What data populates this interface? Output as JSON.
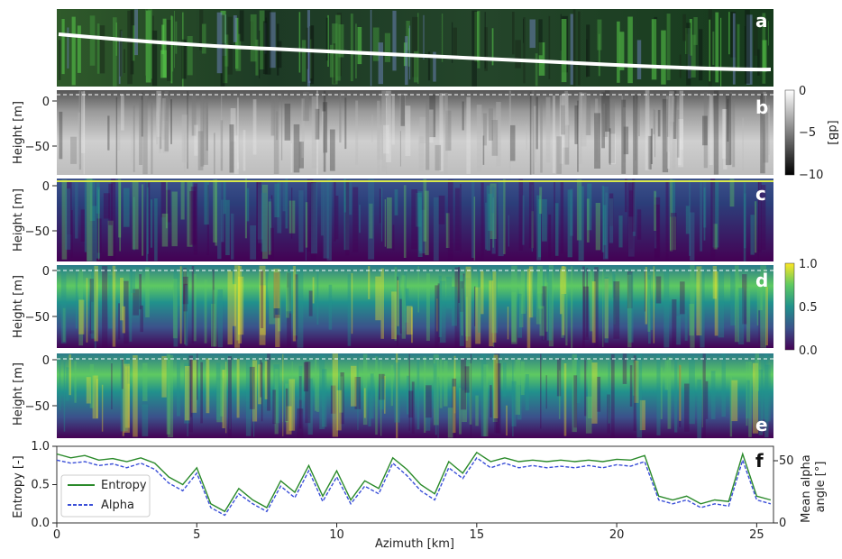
{
  "chart_data": [
    {
      "type": "image",
      "panel_label": "a",
      "description_visible": "optical image strip with white flight track"
    },
    {
      "type": "heatmap",
      "panel_label": "b",
      "ylabel": "Height [m]",
      "yticks": [
        "0",
        "−50"
      ],
      "colorbar": {
        "label": "[dB]",
        "ticks": [
          "0",
          "−5",
          "−10"
        ],
        "range": [
          -10,
          0
        ],
        "colormap": "gray"
      }
    },
    {
      "type": "heatmap",
      "panel_label": "c",
      "ylabel": "Height [m]",
      "yticks": [
        "0",
        "−50"
      ]
    },
    {
      "type": "heatmap",
      "panel_label": "d",
      "ylabel": "Height [m]",
      "yticks": [
        "0",
        "−50"
      ],
      "colorbar": {
        "ticks": [
          "1.0",
          "0.5",
          "0.0"
        ],
        "range": [
          0,
          1
        ],
        "colormap": "viridis"
      }
    },
    {
      "type": "heatmap",
      "panel_label": "e",
      "ylabel": "Height [m]",
      "yticks": [
        "0",
        "−50"
      ]
    },
    {
      "type": "line",
      "panel_label": "f",
      "xlabel": "Azimuth  [km]",
      "xticks": [
        "0",
        "5",
        "10",
        "15",
        "20",
        "25"
      ],
      "xlim": [
        0,
        25.6
      ],
      "ylabel": "Entropy [-]",
      "yticks": [
        "0.0",
        "0.5",
        "1.0"
      ],
      "ylim": [
        0,
        1
      ],
      "ylabel_right": "Mean alpha angle [°]",
      "yticks_right": [
        "0",
        "50"
      ],
      "legend": {
        "position": "lower-left",
        "entries": [
          "Entropy",
          "Alpha"
        ]
      },
      "x": [
        0,
        0.5,
        1,
        1.5,
        2,
        2.5,
        3,
        3.5,
        4,
        4.5,
        5,
        5.5,
        6,
        6.5,
        7,
        7.5,
        8,
        8.5,
        9,
        9.5,
        10,
        10.5,
        11,
        11.5,
        12,
        12.5,
        13,
        13.5,
        14,
        14.5,
        15,
        15.5,
        16,
        16.5,
        17,
        17.5,
        18,
        18.5,
        19,
        19.5,
        20,
        20.5,
        21,
        21.5,
        22,
        22.5,
        23,
        23.5,
        24,
        24.5,
        25,
        25.5
      ],
      "series": [
        {
          "name": "Entropy",
          "color": "#2a8a2a",
          "style": "solid",
          "values": [
            0.9,
            0.85,
            0.88,
            0.82,
            0.84,
            0.8,
            0.85,
            0.78,
            0.6,
            0.5,
            0.72,
            0.25,
            0.15,
            0.45,
            0.3,
            0.2,
            0.55,
            0.4,
            0.75,
            0.35,
            0.68,
            0.3,
            0.55,
            0.45,
            0.85,
            0.7,
            0.5,
            0.38,
            0.8,
            0.65,
            0.92,
            0.8,
            0.85,
            0.8,
            0.82,
            0.8,
            0.82,
            0.8,
            0.82,
            0.8,
            0.83,
            0.82,
            0.88,
            0.35,
            0.3,
            0.35,
            0.25,
            0.3,
            0.28,
            0.9,
            0.35,
            0.3
          ]
        },
        {
          "name": "Alpha",
          "color": "#3a4fd8",
          "style": "dashed",
          "values": [
            0.82,
            0.78,
            0.8,
            0.75,
            0.77,
            0.72,
            0.78,
            0.7,
            0.52,
            0.42,
            0.65,
            0.2,
            0.1,
            0.38,
            0.25,
            0.15,
            0.48,
            0.33,
            0.68,
            0.28,
            0.6,
            0.25,
            0.48,
            0.38,
            0.78,
            0.62,
            0.42,
            0.3,
            0.72,
            0.58,
            0.85,
            0.72,
            0.78,
            0.72,
            0.75,
            0.72,
            0.74,
            0.72,
            0.75,
            0.72,
            0.76,
            0.74,
            0.8,
            0.3,
            0.25,
            0.3,
            0.2,
            0.25,
            0.22,
            0.82,
            0.3,
            0.25
          ]
        }
      ]
    }
  ]
}
